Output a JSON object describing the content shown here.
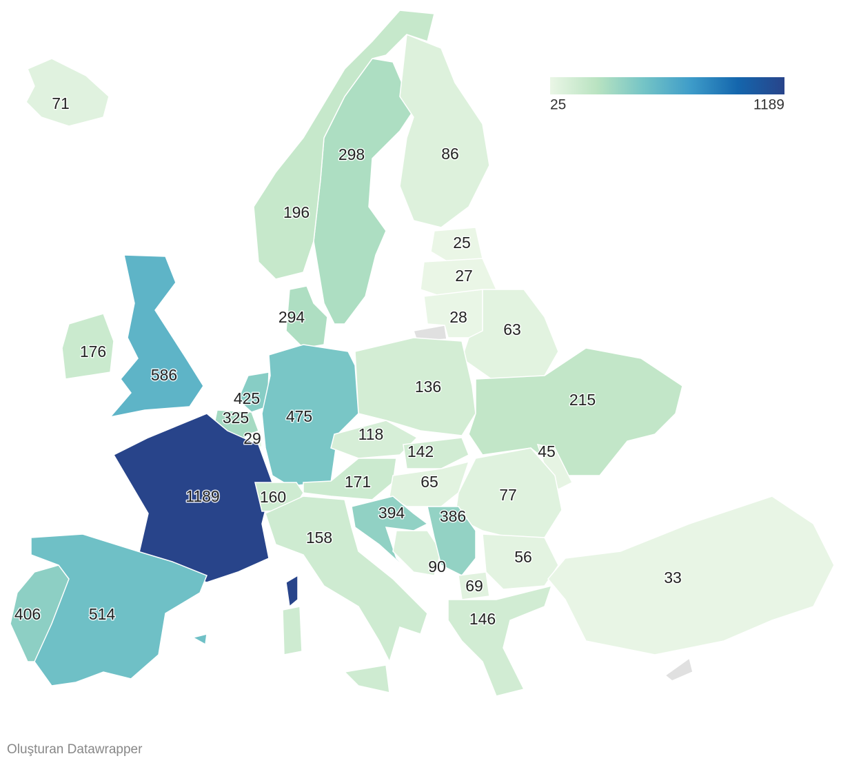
{
  "chart_data": {
    "type": "choropleth",
    "values": [
      71,
      298,
      86,
      196,
      25,
      27,
      28,
      63,
      294,
      176,
      586,
      136,
      215,
      425,
      325,
      475,
      29,
      118,
      142,
      45,
      171,
      65,
      1189,
      160,
      77,
      394,
      90,
      386,
      158,
      56,
      69,
      33,
      146,
      406,
      514
    ],
    "colorscale": {
      "min": 25,
      "max": 1189,
      "colors": [
        "#eaf6e6",
        "#b9e3c1",
        "#74c4c6",
        "#3e9cc9",
        "#1466ad",
        "#28448a"
      ]
    },
    "no_data_color": "#e0e0e0",
    "credit": "Oluşturan Datawrapper"
  }
}
